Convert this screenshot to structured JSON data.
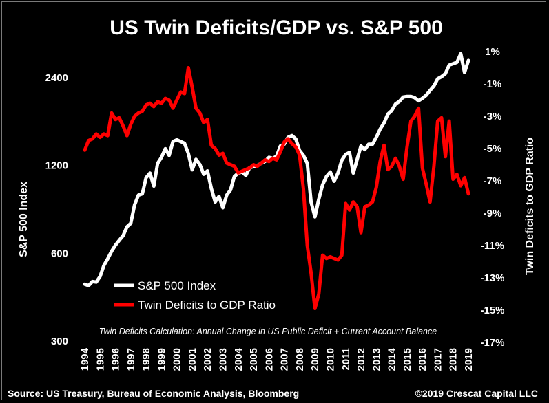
{
  "chart_data": {
    "type": "line",
    "title": "US Twin Deficits/GDP vs. S&P 500",
    "ylabel_left": "S&P 500 Index",
    "ylabel_right": "Twin Deficits to GDP Ratio",
    "y_left_scale": "log",
    "y_left_ticks": [
      "300",
      "600",
      "1200",
      "2400"
    ],
    "y_left_tick_values": [
      300,
      600,
      1200,
      2400
    ],
    "y_right_ticks": [
      "1%",
      "-1%",
      "-3%",
      "-5%",
      "-7%",
      "-9%",
      "-11%",
      "-13%",
      "-15%",
      "-17%"
    ],
    "y_right_tick_values": [
      1,
      -1,
      -3,
      -5,
      -7,
      -9,
      -11,
      -13,
      -15,
      -17
    ],
    "x_ticks": [
      "1994",
      "1995",
      "1996",
      "1997",
      "1998",
      "1999",
      "2000",
      "2001",
      "2002",
      "2003",
      "2004",
      "2005",
      "2006",
      "2007",
      "2008",
      "2009",
      "2010",
      "2011",
      "2012",
      "2013",
      "2014",
      "2015",
      "2016",
      "2017",
      "2018",
      "2019"
    ],
    "legend_position": "bottom-left",
    "grid": false,
    "series": [
      {
        "name": "S&P 500 Index",
        "color": "#ffffff",
        "axis": "left",
        "x": [
          1994.0,
          1994.25,
          1994.5,
          1994.75,
          1995.0,
          1995.25,
          1995.5,
          1995.75,
          1996.0,
          1996.25,
          1996.5,
          1996.75,
          1997.0,
          1997.25,
          1997.5,
          1997.75,
          1998.0,
          1998.25,
          1998.5,
          1998.75,
          1999.0,
          1999.25,
          1999.5,
          1999.75,
          2000.0,
          2000.25,
          2000.5,
          2000.75,
          2001.0,
          2001.25,
          2001.5,
          2001.75,
          2002.0,
          2002.25,
          2002.5,
          2002.75,
          2003.0,
          2003.25,
          2003.5,
          2003.75,
          2004.0,
          2004.25,
          2004.5,
          2004.75,
          2005.0,
          2005.25,
          2005.5,
          2005.75,
          2006.0,
          2006.25,
          2006.5,
          2006.75,
          2007.0,
          2007.25,
          2007.5,
          2007.75,
          2008.0,
          2008.25,
          2008.5,
          2008.75,
          2009.0,
          2009.25,
          2009.5,
          2009.75,
          2010.0,
          2010.25,
          2010.5,
          2010.75,
          2011.0,
          2011.25,
          2011.5,
          2011.75,
          2012.0,
          2012.25,
          2012.5,
          2012.75,
          2013.0,
          2013.25,
          2013.5,
          2013.75,
          2014.0,
          2014.25,
          2014.5,
          2014.75,
          2015.0,
          2015.25,
          2015.5,
          2015.75,
          2016.0,
          2016.25,
          2016.5,
          2016.75,
          2017.0,
          2017.25,
          2017.5,
          2017.75,
          2018.0,
          2018.25,
          2018.5,
          2018.75,
          2019.0
        ],
        "values": [
          470,
          465,
          480,
          478,
          500,
          545,
          575,
          610,
          640,
          665,
          690,
          740,
          760,
          880,
          950,
          960,
          1090,
          1130,
          1020,
          1220,
          1280,
          1370,
          1300,
          1450,
          1470,
          1450,
          1430,
          1320,
          1160,
          1260,
          1210,
          1120,
          1150,
          1000,
          900,
          940,
          860,
          950,
          990,
          1100,
          1130,
          1140,
          1110,
          1180,
          1190,
          1200,
          1220,
          1240,
          1280,
          1270,
          1290,
          1400,
          1420,
          1500,
          1520,
          1480,
          1350,
          1300,
          1220,
          900,
          800,
          920,
          1030,
          1100,
          1140,
          1060,
          1130,
          1250,
          1310,
          1330,
          1130,
          1260,
          1400,
          1360,
          1420,
          1420,
          1500,
          1600,
          1680,
          1800,
          1850,
          1950,
          1990,
          2060,
          2070,
          2070,
          2050,
          2000,
          2040,
          2090,
          2170,
          2250,
          2380,
          2420,
          2480,
          2650,
          2680,
          2710,
          2900,
          2500,
          2750
        ]
      },
      {
        "name": "Twin Deficits to GDP Ratio",
        "color": "#ff0000",
        "axis": "right",
        "x": [
          1994.0,
          1994.25,
          1994.5,
          1994.75,
          1995.0,
          1995.25,
          1995.5,
          1995.75,
          1996.0,
          1996.25,
          1996.5,
          1996.75,
          1997.0,
          1997.25,
          1997.5,
          1997.75,
          1998.0,
          1998.25,
          1998.5,
          1998.75,
          1999.0,
          1999.25,
          1999.5,
          1999.75,
          2000.0,
          2000.25,
          2000.5,
          2000.75,
          2001.0,
          2001.25,
          2001.5,
          2001.75,
          2002.0,
          2002.25,
          2002.5,
          2002.75,
          2003.0,
          2003.25,
          2003.5,
          2003.75,
          2004.0,
          2004.25,
          2004.5,
          2004.75,
          2005.0,
          2005.25,
          2005.5,
          2005.75,
          2006.0,
          2006.25,
          2006.5,
          2006.75,
          2007.0,
          2007.25,
          2007.5,
          2007.75,
          2008.0,
          2008.25,
          2008.5,
          2008.75,
          2009.0,
          2009.25,
          2009.5,
          2009.75,
          2010.0,
          2010.25,
          2010.5,
          2010.75,
          2011.0,
          2011.25,
          2011.5,
          2011.75,
          2012.0,
          2012.25,
          2012.5,
          2012.75,
          2013.0,
          2013.25,
          2013.5,
          2013.75,
          2014.0,
          2014.25,
          2014.5,
          2014.75,
          2015.0,
          2015.25,
          2015.5,
          2015.75,
          2016.0,
          2016.25,
          2016.5,
          2016.75,
          2017.0,
          2017.25,
          2017.5,
          2017.75,
          2018.0,
          2018.25,
          2018.5,
          2018.75,
          2019.0
        ],
        "values": [
          -5.1,
          -4.5,
          -4.4,
          -4.1,
          -4.3,
          -4.1,
          -4.2,
          -2.8,
          -3.2,
          -3.1,
          -3.6,
          -4.2,
          -3.5,
          -3.0,
          -2.8,
          -2.7,
          -2.3,
          -2.2,
          -2.4,
          -2.1,
          -2.2,
          -1.9,
          -2.0,
          -2.5,
          -2.0,
          -1.5,
          -1.6,
          0.0,
          -1.2,
          -2.5,
          -2.8,
          -3.4,
          -3.2,
          -4.8,
          -5.0,
          -5.4,
          -5.3,
          -5.9,
          -6.0,
          -6.1,
          -6.5,
          -6.4,
          -6.3,
          -6.2,
          -6.0,
          -6.1,
          -5.9,
          -5.7,
          -5.8,
          -5.6,
          -5.7,
          -5.2,
          -4.6,
          -4.4,
          -4.7,
          -4.9,
          -5.4,
          -7.5,
          -11.0,
          -12.7,
          -14.9,
          -14.0,
          -11.6,
          -11.8,
          -11.7,
          -11.8,
          -11.9,
          -11.6,
          -8.4,
          -8.8,
          -8.3,
          -8.6,
          -10.2,
          -8.6,
          -8.5,
          -8.3,
          -7.4,
          -5.8,
          -4.8,
          -6.3,
          -6.1,
          -5.6,
          -6.1,
          -6.9,
          -4.9,
          -3.3,
          -3.0,
          -2.5,
          -6.2,
          -7.2,
          -8.3,
          -6.1,
          -3.3,
          -3.1,
          -5.5,
          -3.3,
          -6.9,
          -6.6,
          -7.3,
          -6.8,
          -7.8
        ]
      }
    ],
    "annotation": "Twin Deficits Calculation: Annual Change in US Public Deficit + Current Account Balance"
  },
  "footer": {
    "source": "Source: US Treasury, Bureau of Economic Analysis, Bloomberg",
    "copyright": "©2019 Crescat Capital LLC"
  }
}
